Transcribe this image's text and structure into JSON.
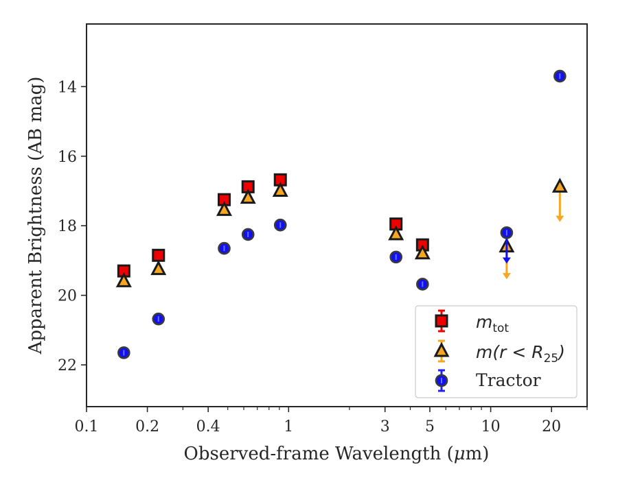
{
  "chart_data": {
    "type": "scatter",
    "title": "",
    "xlabel_text": "Observed-frame Wavelength (",
    "xlabel_unit": "μ",
    "xlabel_tail": "m)",
    "ylabel": "Apparent Brightness (AB mag)",
    "xscale": "log",
    "xlim": [
      0.1,
      30
    ],
    "ylim": [
      23.2,
      12.2
    ],
    "y_inverted": true,
    "grid": false,
    "legend_position": "lower-right",
    "x_ticks": [
      {
        "value": 0.1,
        "label": "0.1"
      },
      {
        "value": 0.2,
        "label": "0.2"
      },
      {
        "value": 0.4,
        "label": "0.4"
      },
      {
        "value": 1,
        "label": "1"
      },
      {
        "value": 3,
        "label": "3"
      },
      {
        "value": 5,
        "label": "5"
      },
      {
        "value": 10,
        "label": "10"
      },
      {
        "value": 20,
        "label": "20"
      }
    ],
    "x_minor_ticks": [
      0.3,
      0.5,
      0.6,
      0.7,
      0.8,
      0.9,
      2,
      4,
      6,
      7,
      8,
      9,
      30
    ],
    "y_ticks": [
      {
        "value": 14,
        "label": "14"
      },
      {
        "value": 16,
        "label": "16"
      },
      {
        "value": 18,
        "label": "18"
      },
      {
        "value": 20,
        "label": "20"
      },
      {
        "value": 22,
        "label": "22"
      }
    ],
    "series": [
      {
        "key": "m_tot",
        "legend_label": "m",
        "legend_sub": "tot",
        "marker": "square",
        "color": "#ee0000",
        "edge": "#1a1a1a",
        "points": [
          {
            "x": 0.153,
            "y": 19.3
          },
          {
            "x": 0.227,
            "y": 18.85
          },
          {
            "x": 0.48,
            "y": 17.25
          },
          {
            "x": 0.63,
            "y": 16.88
          },
          {
            "x": 0.91,
            "y": 16.68
          },
          {
            "x": 3.4,
            "y": 17.95
          },
          {
            "x": 4.6,
            "y": 18.55
          }
        ]
      },
      {
        "key": "m_r25",
        "legend_label": "m(r < R",
        "legend_sub": "25",
        "legend_tail": ")",
        "marker": "triangle",
        "color": "#f5a623",
        "edge": "#1a1a1a",
        "points": [
          {
            "x": 0.153,
            "y": 19.6
          },
          {
            "x": 0.227,
            "y": 19.25
          },
          {
            "x": 0.48,
            "y": 17.55
          },
          {
            "x": 0.63,
            "y": 17.2
          },
          {
            "x": 0.91,
            "y": 17.0
          },
          {
            "x": 3.4,
            "y": 18.25
          },
          {
            "x": 4.6,
            "y": 18.8
          },
          {
            "x": 12.0,
            "y": 18.6,
            "upper_limit": true,
            "arrow_to": 19.5
          },
          {
            "x": 22.0,
            "y": 16.88,
            "upper_limit": true,
            "arrow_to": 17.85
          }
        ]
      },
      {
        "key": "tractor",
        "legend_label": "Tractor",
        "marker": "circle",
        "color": "#1111ee",
        "edge": "#3a3a3a",
        "points": [
          {
            "x": 0.153,
            "y": 21.65
          },
          {
            "x": 0.227,
            "y": 20.68
          },
          {
            "x": 0.48,
            "y": 18.65
          },
          {
            "x": 0.63,
            "y": 18.25
          },
          {
            "x": 0.91,
            "y": 17.98
          },
          {
            "x": 3.4,
            "y": 18.9
          },
          {
            "x": 4.6,
            "y": 19.68
          },
          {
            "x": 12.0,
            "y": 18.2,
            "upper_limit": true,
            "arrow_to": 19.05
          },
          {
            "x": 22.0,
            "y": 13.7
          }
        ]
      }
    ]
  }
}
